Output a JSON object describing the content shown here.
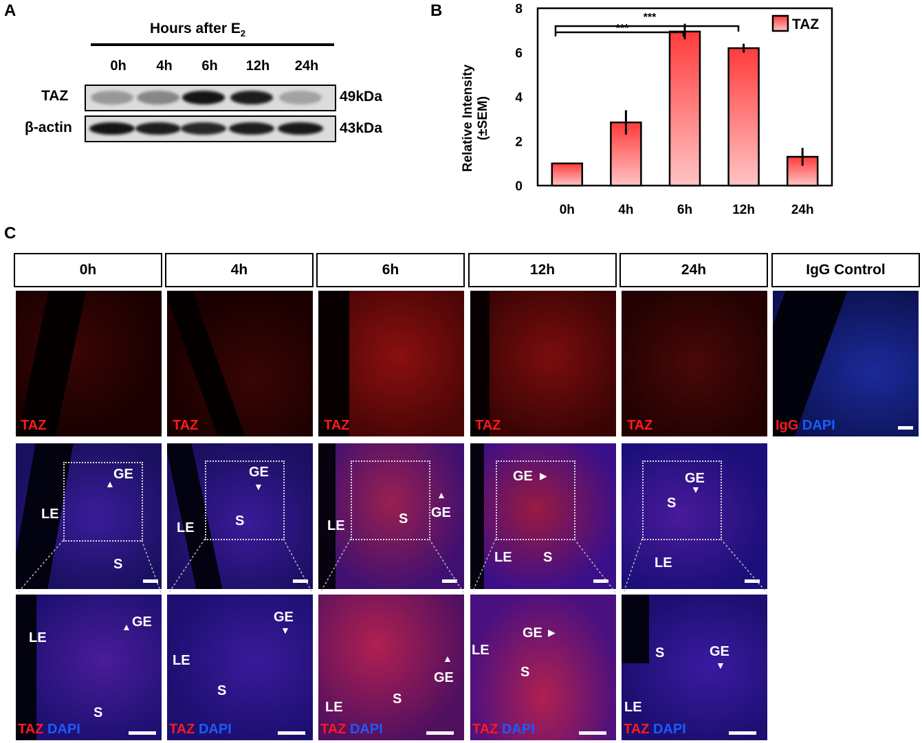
{
  "panel_a": {
    "letter": "A",
    "header": "Hours after E",
    "header_sub": "2",
    "lanes": [
      "0h",
      "4h",
      "6h",
      "12h",
      "24h"
    ],
    "rows": [
      {
        "name": "TAZ",
        "size": "49kDa",
        "intensity": [
          0.25,
          0.35,
          0.95,
          0.9,
          0.2
        ]
      },
      {
        "name": "β-actin",
        "size": "43kDa",
        "intensity": [
          0.95,
          0.9,
          0.85,
          0.9,
          0.92
        ]
      }
    ]
  },
  "panel_b": {
    "letter": "B",
    "significance": [
      "***",
      "***"
    ]
  },
  "chart_data": {
    "type": "bar",
    "categories": [
      "0h",
      "4h",
      "6h",
      "12h",
      "24h"
    ],
    "series": [
      {
        "name": "TAZ",
        "values": [
          1.0,
          2.85,
          6.95,
          6.2,
          1.3
        ],
        "errors": [
          0.0,
          0.55,
          0.35,
          0.2,
          0.4
        ]
      }
    ],
    "ylabel": "Relative Intensity (±SEM)",
    "ylim": [
      0,
      8
    ],
    "yticks": [
      0,
      2,
      4,
      6,
      8
    ],
    "legend": "top-right",
    "colors": {
      "bar_top": "#ff3b3b",
      "bar_bottom": "#ffc4c4"
    }
  },
  "panel_c": {
    "letter": "C",
    "columns": [
      "0h",
      "4h",
      "6h",
      "12h",
      "24h",
      "IgG Control"
    ],
    "top_labels": [
      "TAZ",
      "TAZ",
      "TAZ",
      "TAZ",
      "TAZ"
    ],
    "igg_label": "IgG",
    "dapi_label": "DAPI",
    "bottom_red": "TAZ",
    "bottom_blue": "DAPI",
    "middle_labels": {
      "ge": "GE",
      "le": "LE",
      "s": "S"
    },
    "bottom_labels": {
      "ge": "GE",
      "le": "LE",
      "s": "S"
    }
  }
}
